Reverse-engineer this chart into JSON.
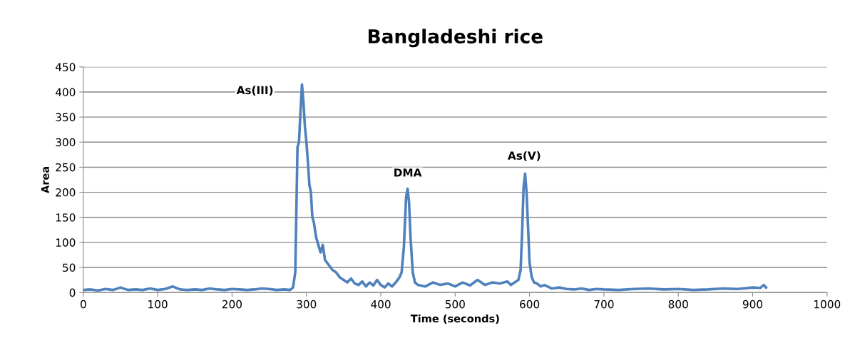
{
  "chart_data": {
    "type": "line",
    "title": "Bangladeshi rice",
    "xlabel": "Time (seconds)",
    "ylabel": "Area",
    "xlim": [
      0,
      1000
    ],
    "xticks": [
      0,
      100,
      200,
      300,
      400,
      500,
      600,
      700,
      800,
      900,
      1000
    ],
    "ylim": [
      0,
      450
    ],
    "yticks": [
      0,
      50,
      100,
      150,
      200,
      250,
      300,
      350,
      400,
      450
    ],
    "grid": "y",
    "marker": "none",
    "line_style": "solid",
    "annotations": [
      {
        "text": "As(III)",
        "x": 293,
        "y": 415
      },
      {
        "text": "DMA",
        "x": 436,
        "y": 207
      },
      {
        "text": "As(V)",
        "x": 593,
        "y": 237
      }
    ],
    "series": [
      {
        "color": "#4f81bd",
        "x": [
          0,
          10,
          20,
          30,
          40,
          50,
          60,
          70,
          80,
          90,
          100,
          110,
          120,
          130,
          140,
          150,
          160,
          170,
          180,
          190,
          200,
          210,
          220,
          230,
          240,
          250,
          260,
          270,
          278,
          282,
          285,
          288,
          290,
          292,
          294,
          296,
          298,
          300,
          302,
          304,
          306,
          308,
          310,
          313,
          316,
          319,
          322,
          325,
          330,
          335,
          340,
          345,
          350,
          355,
          360,
          365,
          370,
          375,
          380,
          385,
          390,
          395,
          400,
          405,
          410,
          415,
          420,
          425,
          428,
          431,
          434,
          436,
          438,
          440,
          443,
          446,
          450,
          460,
          470,
          480,
          490,
          500,
          510,
          520,
          530,
          540,
          550,
          560,
          570,
          575,
          580,
          585,
          588,
          590,
          592,
          594,
          596,
          598,
          600,
          603,
          606,
          610,
          615,
          620,
          630,
          640,
          650,
          660,
          670,
          680,
          690,
          700,
          720,
          740,
          760,
          780,
          800,
          820,
          840,
          860,
          880,
          900,
          910,
          915,
          918
        ],
        "values": [
          5,
          6,
          4,
          7,
          5,
          10,
          5,
          6,
          5,
          8,
          5,
          7,
          12,
          6,
          5,
          6,
          5,
          8,
          6,
          5,
          7,
          6,
          5,
          6,
          8,
          7,
          5,
          6,
          5,
          10,
          40,
          290,
          300,
          360,
          415,
          380,
          330,
          300,
          260,
          215,
          200,
          150,
          140,
          110,
          95,
          80,
          95,
          65,
          55,
          45,
          40,
          30,
          25,
          20,
          28,
          18,
          15,
          22,
          12,
          20,
          14,
          25,
          15,
          10,
          18,
          12,
          20,
          30,
          40,
          90,
          190,
          207,
          180,
          110,
          40,
          20,
          15,
          12,
          20,
          15,
          18,
          12,
          20,
          14,
          25,
          15,
          20,
          18,
          22,
          15,
          20,
          25,
          45,
          120,
          210,
          237,
          200,
          130,
          60,
          30,
          20,
          18,
          12,
          15,
          8,
          10,
          7,
          6,
          8,
          5,
          7,
          6,
          5,
          7,
          8,
          6,
          7,
          5,
          6,
          8,
          7,
          10,
          9,
          15,
          10
        ]
      }
    ]
  }
}
